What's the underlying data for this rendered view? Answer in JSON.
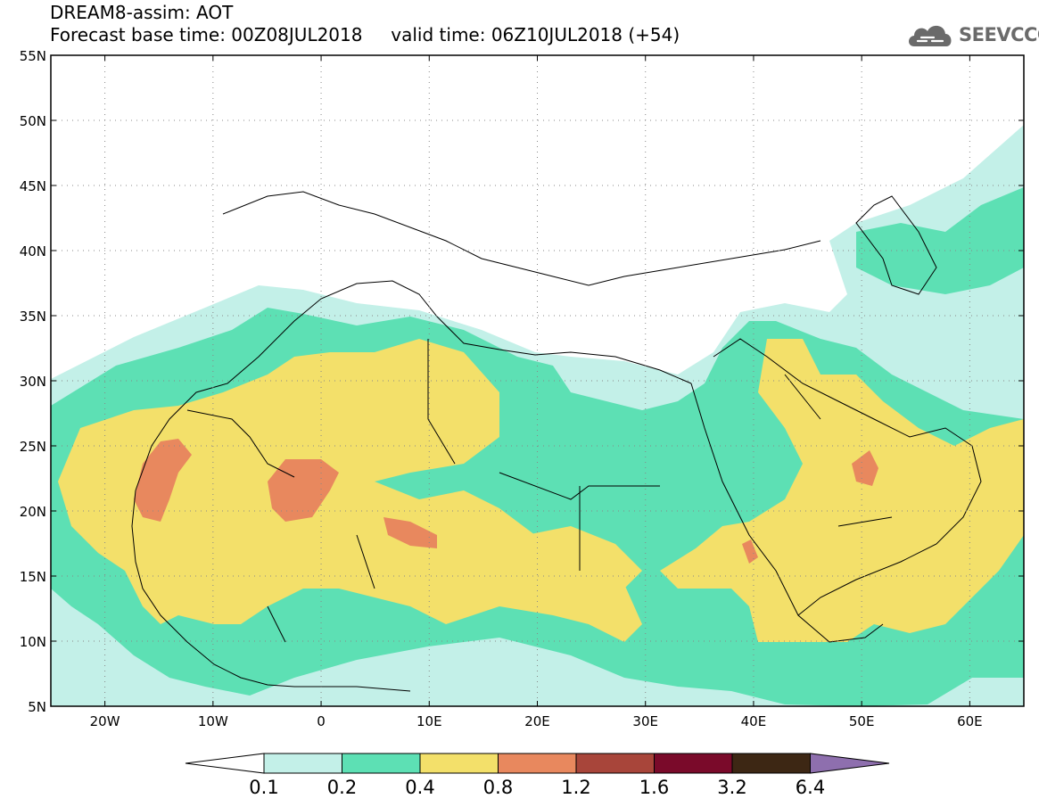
{
  "header": {
    "title": "DREAM8-assim: AOT",
    "forecast_base": "Forecast base time: 00Z08JUL2018",
    "valid_time": "valid time: 06Z10JUL2018 (+54)"
  },
  "logo": {
    "text": "SEEVCCC",
    "icon": "cloud-icon"
  },
  "map": {
    "lon_range": [
      -25,
      65
    ],
    "lat_range": [
      5,
      55
    ],
    "lon_ticks": [
      {
        "value": -20,
        "label": "20W"
      },
      {
        "value": -10,
        "label": "10W"
      },
      {
        "value": 0,
        "label": "0"
      },
      {
        "value": 10,
        "label": "10E"
      },
      {
        "value": 20,
        "label": "20E"
      },
      {
        "value": 30,
        "label": "30E"
      },
      {
        "value": 40,
        "label": "40E"
      },
      {
        "value": 50,
        "label": "50E"
      },
      {
        "value": 60,
        "label": "60E"
      }
    ],
    "lat_ticks": [
      {
        "value": 55,
        "label": "55N"
      },
      {
        "value": 50,
        "label": "50N"
      },
      {
        "value": 45,
        "label": "45N"
      },
      {
        "value": 40,
        "label": "40N"
      },
      {
        "value": 35,
        "label": "35N"
      },
      {
        "value": 30,
        "label": "30N"
      },
      {
        "value": 25,
        "label": "25N"
      },
      {
        "value": 20,
        "label": "20N"
      },
      {
        "value": 15,
        "label": "15N"
      },
      {
        "value": 10,
        "label": "10N"
      },
      {
        "value": 5,
        "label": "5N"
      }
    ],
    "grid": true
  },
  "colorbar": {
    "bins": [
      {
        "color": "#c3f0e8"
      },
      {
        "color": "#5de0b4"
      },
      {
        "color": "#f3e06a"
      },
      {
        "color": "#e8885e"
      },
      {
        "color": "#a8453a"
      },
      {
        "color": "#7a0a2a"
      },
      {
        "color": "#3d2714"
      }
    ],
    "low_extend_color": "#ffffff",
    "high_extend_color": "#8e6fae",
    "labels": [
      "0.1",
      "0.2",
      "0.4",
      "0.8",
      "1.2",
      "1.6",
      "3.2",
      "6.4"
    ]
  },
  "fields": {
    "aot_01": "#c3f0e8",
    "aot_02": "#5de0b4",
    "aot_04": "#f3e06a",
    "aot_08": "#e8885e"
  }
}
